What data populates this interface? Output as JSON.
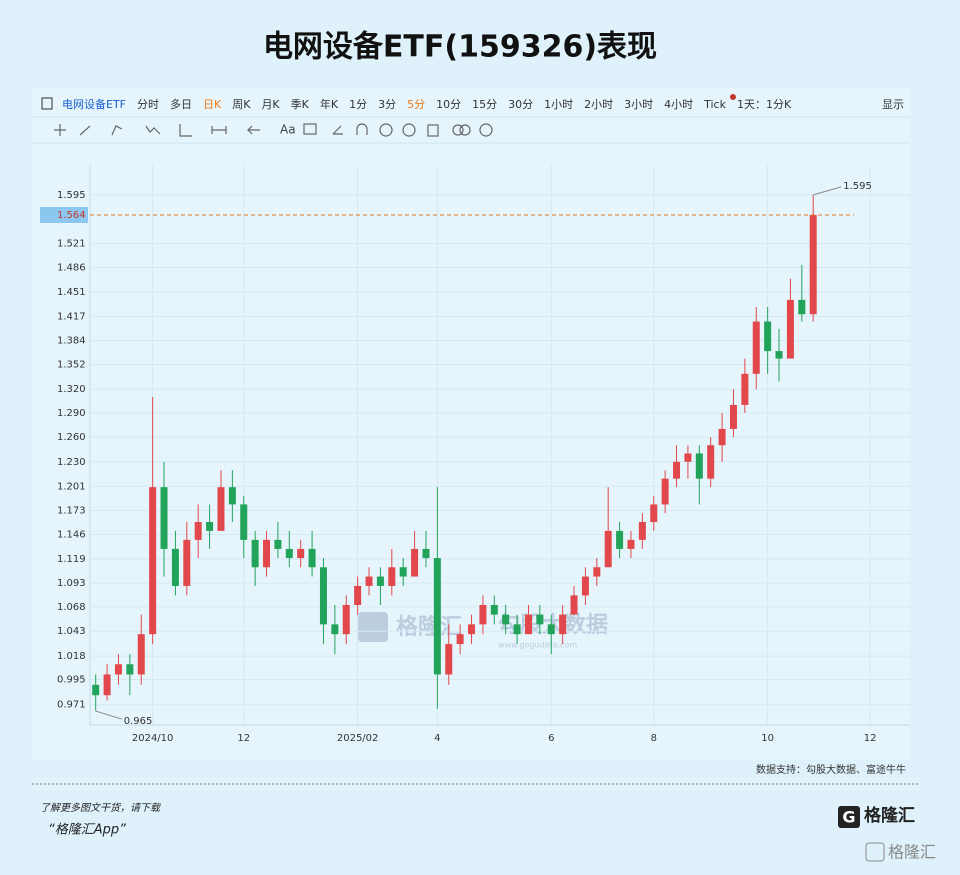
{
  "title": "电网设备ETF(159326)表现",
  "toolbar": {
    "items": [
      {
        "label": "电网设备ETF",
        "active": false
      },
      {
        "label": "分时",
        "active": false
      },
      {
        "label": "多日",
        "active": false
      },
      {
        "label": "日K",
        "active": true
      },
      {
        "label": "周K",
        "active": false
      },
      {
        "label": "月K",
        "active": false
      },
      {
        "label": "季K",
        "active": false
      },
      {
        "label": "年K",
        "active": false
      },
      {
        "label": "1分",
        "active": false
      },
      {
        "label": "3分",
        "active": false
      },
      {
        "label": "5分",
        "active": true
      },
      {
        "label": "10分",
        "active": false
      },
      {
        "label": "15分",
        "active": false
      },
      {
        "label": "30分",
        "active": false
      },
      {
        "label": "1小时",
        "active": false
      },
      {
        "label": "2小时",
        "active": false
      },
      {
        "label": "3小时",
        "active": false
      },
      {
        "label": "4小时",
        "active": false
      },
      {
        "label": "Tick",
        "active": false
      },
      {
        "label": "1天：1分K",
        "active": false
      },
      {
        "label": "显示",
        "active": false
      }
    ],
    "text_tool": "Aa"
  },
  "chart_data": {
    "type": "candlestick",
    "log_scale": true,
    "grid": true,
    "up_color": "#e2474b",
    "down_color": "#22a35a",
    "categories": [
      null,
      null,
      null,
      null,
      null,
      "2024/10",
      null,
      null,
      null,
      null,
      null,
      null,
      null,
      "12",
      null,
      null,
      null,
      null,
      null,
      null,
      null,
      null,
      null,
      "2025/02",
      null,
      null,
      null,
      null,
      null,
      null,
      "4",
      null,
      null,
      null,
      null,
      null,
      null,
      null,
      null,
      null,
      "6",
      null,
      null,
      null,
      null,
      null,
      null,
      null,
      null,
      "8",
      null,
      null,
      null,
      null,
      null,
      null,
      null,
      null,
      null,
      "10",
      null,
      null,
      null,
      null,
      null,
      null,
      null,
      null,
      "12",
      null,
      null,
      null
    ],
    "open": [
      0.99,
      0.98,
      1.0,
      1.01,
      1.0,
      1.04,
      1.2,
      1.13,
      1.09,
      1.14,
      1.16,
      1.15,
      1.2,
      1.18,
      1.14,
      1.11,
      1.14,
      1.13,
      1.12,
      1.13,
      1.11,
      1.05,
      1.04,
      1.07,
      1.09,
      1.1,
      1.09,
      1.11,
      1.1,
      1.13,
      1.12,
      1.0,
      1.03,
      1.04,
      1.05,
      1.07,
      1.06,
      1.05,
      1.04,
      1.06,
      1.05,
      1.04,
      1.06,
      1.08,
      1.1,
      1.11,
      1.15,
      1.13,
      1.14,
      1.16,
      1.18,
      1.21,
      1.23,
      1.24,
      1.21,
      1.25,
      1.27,
      1.3,
      1.34,
      1.41,
      1.37,
      1.36,
      1.44,
      1.42,
      null,
      null,
      null,
      null,
      null,
      null,
      null,
      null
    ],
    "high": [
      1.0,
      1.01,
      1.02,
      1.02,
      1.06,
      1.31,
      1.23,
      1.15,
      1.16,
      1.18,
      1.18,
      1.22,
      1.22,
      1.19,
      1.15,
      1.15,
      1.16,
      1.15,
      1.14,
      1.15,
      1.12,
      1.07,
      1.08,
      1.1,
      1.11,
      1.11,
      1.13,
      1.12,
      1.15,
      1.15,
      1.2,
      1.05,
      1.05,
      1.06,
      1.08,
      1.08,
      1.07,
      1.06,
      1.07,
      1.07,
      1.06,
      1.07,
      1.09,
      1.11,
      1.12,
      1.2,
      1.16,
      1.15,
      1.17,
      1.19,
      1.22,
      1.25,
      1.25,
      1.25,
      1.26,
      1.29,
      1.32,
      1.36,
      1.43,
      1.43,
      1.4,
      1.47,
      1.49,
      1.595,
      null,
      null,
      null,
      null,
      null,
      null,
      null,
      null
    ],
    "low": [
      0.965,
      0.975,
      0.99,
      0.98,
      0.99,
      1.03,
      1.1,
      1.08,
      1.08,
      1.12,
      1.13,
      1.15,
      1.16,
      1.12,
      1.09,
      1.1,
      1.12,
      1.11,
      1.11,
      1.1,
      1.03,
      1.02,
      1.03,
      1.06,
      1.08,
      1.07,
      1.08,
      1.09,
      1.1,
      1.11,
      0.967,
      0.99,
      1.02,
      1.03,
      1.04,
      1.05,
      1.04,
      1.03,
      1.04,
      1.04,
      1.02,
      1.03,
      1.06,
      1.07,
      1.09,
      1.11,
      1.12,
      1.12,
      1.13,
      1.15,
      1.17,
      1.2,
      1.21,
      1.18,
      1.2,
      1.23,
      1.26,
      1.29,
      1.32,
      1.34,
      1.33,
      1.36,
      1.41,
      1.41,
      null,
      null,
      null,
      null,
      null,
      null,
      null,
      null
    ],
    "close": [
      0.98,
      1.0,
      1.01,
      1.0,
      1.04,
      1.2,
      1.13,
      1.09,
      1.14,
      1.16,
      1.15,
      1.2,
      1.18,
      1.14,
      1.11,
      1.14,
      1.13,
      1.12,
      1.13,
      1.11,
      1.05,
      1.04,
      1.07,
      1.09,
      1.1,
      1.09,
      1.11,
      1.1,
      1.13,
      1.12,
      1.0,
      1.03,
      1.04,
      1.05,
      1.07,
      1.06,
      1.05,
      1.04,
      1.06,
      1.05,
      1.04,
      1.06,
      1.08,
      1.1,
      1.11,
      1.15,
      1.13,
      1.14,
      1.16,
      1.18,
      1.21,
      1.23,
      1.24,
      1.21,
      1.25,
      1.27,
      1.3,
      1.34,
      1.41,
      1.37,
      1.36,
      1.44,
      1.42,
      1.564,
      null,
      null,
      null,
      null,
      null,
      null,
      null,
      null
    ],
    "ylim": [
      0.952,
      1.642
    ],
    "yticks": [
      0.971,
      0.995,
      1.018,
      1.043,
      1.068,
      1.093,
      1.119,
      1.146,
      1.173,
      1.201,
      {
        "value": 1.23,
        "label": "1.230"
      },
      {
        "value": 1.26,
        "label": "1.260"
      },
      {
        "value": 1.29,
        "label": "1.290"
      },
      {
        "value": 1.32,
        "label": "1.320"
      },
      1.352,
      1.384,
      1.417,
      1.451,
      1.486,
      1.521,
      1.595
    ],
    "source": "数据支持：勾股大数据、富途牛牛",
    "watermark": {
      "brand": "格隆汇",
      "provider": "勾股大数据",
      "url": "www.gogudata.com"
    }
  },
  "footer": {
    "note": "了解更多图文干货，请下载",
    "app": "“格隆汇App”",
    "logo": "格隆汇"
  }
}
